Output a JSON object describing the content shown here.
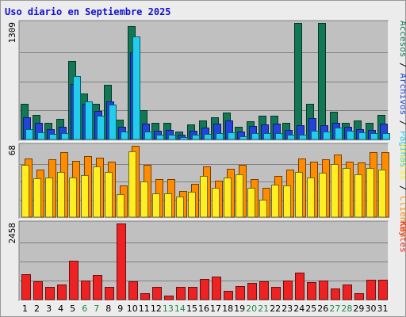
{
  "chart_data": {
    "type": "bar",
    "title": "Uso diario en Septiembre 2025",
    "categories": [
      "1",
      "2",
      "3",
      "4",
      "5",
      "6",
      "7",
      "8",
      "9",
      "10",
      "11",
      "12",
      "13",
      "14",
      "15",
      "16",
      "17",
      "18",
      "19",
      "20",
      "21",
      "22",
      "23",
      "24",
      "25",
      "26",
      "27",
      "28",
      "29",
      "30",
      "31"
    ],
    "weekend_days": [
      "6",
      "7",
      "13",
      "14",
      "20",
      "21",
      "27",
      "28"
    ],
    "panels": [
      {
        "max_label": "1309",
        "ylim": [
          0,
          1309
        ],
        "grid": true,
        "series": [
          {
            "name": "Accesos",
            "color": "#117755",
            "values": [
              400,
              280,
              190,
              230,
              880,
              520,
              400,
              610,
              225,
              1270,
              330,
              190,
              190,
              90,
              165,
              210,
              250,
              300,
              140,
              205,
              265,
              265,
              190,
              1309,
              400,
              1309,
              310,
              190,
              215,
              190,
              280
            ]
          },
          {
            "name": "Archivos",
            "color": "#2244dd",
            "values": [
              250,
              185,
              120,
              140,
              620,
              400,
              320,
              430,
              140,
              980,
              175,
              95,
              110,
              55,
              100,
              130,
              175,
              215,
              90,
              150,
              170,
              175,
              110,
              160,
              240,
              160,
              185,
              145,
              120,
              110,
              180
            ]
          },
          {
            "name": "Páginas",
            "color": "#22ccee",
            "values": [
              120,
              80,
              60,
              70,
              710,
              430,
              270,
              390,
              90,
              1160,
              85,
              55,
              50,
              25,
              55,
              60,
              70,
              80,
              40,
              70,
              75,
              75,
              55,
              55,
              100,
              90,
              130,
              100,
              80,
              75,
              75
            ]
          }
        ]
      },
      {
        "max_label": "68",
        "ylim": [
          0,
          68
        ],
        "grid": true,
        "series": [
          {
            "name": "Visitas",
            "color": "#ffee22",
            "values": [
              50,
              37,
              38,
              43,
              38,
              40,
              48,
              43,
              22,
              63,
              34,
              23,
              23,
              20,
              24,
              39,
              28,
              38,
              41,
              28,
              17,
              31,
              30,
              43,
              38,
              42,
              51,
              47,
              41,
              47,
              45
            ]
          },
          {
            "name": "Clientes",
            "color": "#ff8c00",
            "values": [
              56,
              45,
              55,
              62,
              54,
              58,
              57,
              53,
              30,
              68,
              50,
              36,
              36,
              25,
              32,
              48,
              35,
              46,
              50,
              36,
              28,
              39,
              45,
              56,
              53,
              55,
              60,
              53,
              52,
              62,
              62
            ]
          }
        ]
      },
      {
        "max_label": "2458",
        "ylim": [
          0,
          2458
        ],
        "grid": true,
        "series": [
          {
            "name": "KBytes",
            "color": "#ee2222",
            "values": [
              820,
              600,
              420,
              480,
              1260,
              620,
              800,
              400,
              2458,
              580,
              200,
              400,
              140,
              420,
              420,
              660,
              740,
              280,
              440,
              540,
              580,
              420,
              610,
              860,
              560,
              620,
              370,
              480,
              210,
              630,
              640
            ]
          }
        ]
      }
    ],
    "right_labels": [
      {
        "panel": 0,
        "parts": [
          {
            "text": "Accesos",
            "color": "#117755"
          },
          {
            "text": " / ",
            "color": "#000000"
          },
          {
            "text": "Archivos",
            "color": "#2244dd"
          },
          {
            "text": " / ",
            "color": "#000000"
          },
          {
            "text": "Páginas",
            "color": "#22ccee"
          }
        ]
      },
      {
        "panel": 1,
        "parts": [
          {
            "text": "Visitas",
            "color": "#ffee22"
          },
          {
            "text": " / ",
            "color": "#000000"
          },
          {
            "text": "Clientes",
            "color": "#ff8c00"
          }
        ]
      },
      {
        "panel": 2,
        "parts": [
          {
            "text": "KBytes",
            "color": "#ee2222"
          }
        ]
      }
    ],
    "colors": {
      "panel_bg": "#c0c0c0",
      "frame_bg": "#ececec",
      "weekday_label": "#000000",
      "weekend_label": "#228844",
      "title": "#1010d0"
    }
  }
}
